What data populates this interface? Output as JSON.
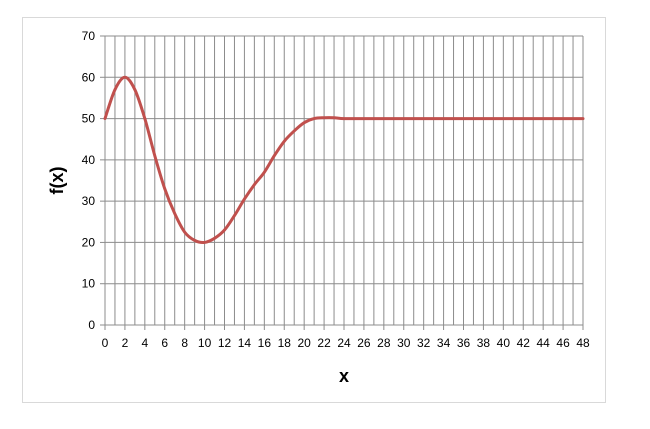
{
  "chart_data": {
    "type": "line",
    "title": "",
    "xlabel": "x",
    "ylabel": "f(x)",
    "xlim": [
      0,
      48
    ],
    "ylim": [
      0,
      70
    ],
    "x_ticks": [
      0,
      2,
      4,
      6,
      8,
      10,
      12,
      14,
      16,
      18,
      20,
      22,
      24,
      26,
      28,
      30,
      32,
      34,
      36,
      38,
      40,
      42,
      44,
      46,
      48
    ],
    "y_ticks": [
      0,
      10,
      20,
      30,
      40,
      50,
      60,
      70
    ],
    "grid": true,
    "legend": "none",
    "series": [
      {
        "color": "#c0504d",
        "x": [
          0,
          1,
          2,
          3,
          4,
          5,
          6,
          7,
          8,
          9,
          10,
          11,
          12,
          13,
          14,
          15,
          16,
          17,
          18,
          19,
          20,
          21,
          22,
          23,
          24,
          26,
          28,
          30,
          32,
          34,
          36,
          38,
          40,
          42,
          44,
          46,
          48
        ],
        "y": [
          50,
          57,
          60,
          57,
          50,
          41,
          33,
          27,
          22.5,
          20.5,
          20,
          21,
          23,
          26.5,
          30.5,
          34,
          37,
          41,
          44.5,
          47,
          49,
          50,
          50.2,
          50.2,
          50,
          50,
          50,
          50,
          50,
          50,
          50,
          50,
          50,
          50,
          50,
          50,
          50
        ]
      }
    ]
  }
}
